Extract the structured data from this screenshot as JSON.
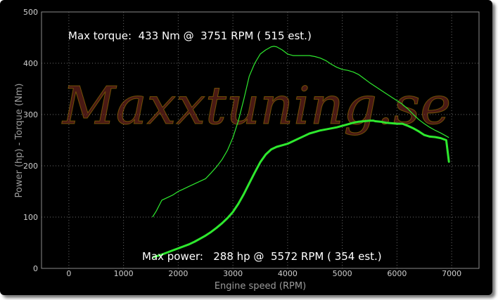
{
  "chart_data": {
    "type": "line",
    "title": "",
    "xlabel": "Engine speed (RPM)",
    "ylabel": "Power (hp) - Torque (Nm)",
    "xlim": [
      -500,
      7500
    ],
    "ylim": [
      0,
      500
    ],
    "x_ticks": [
      0,
      1000,
      2000,
      3000,
      4000,
      5000,
      6000,
      7000
    ],
    "y_ticks": [
      0,
      100,
      200,
      300,
      400,
      500
    ],
    "grid": true,
    "watermark": "Maxxtuning.se",
    "series": [
      {
        "name": "Torque (Nm)",
        "color": "#2ee82e",
        "style": "thin",
        "x": [
          1530,
          1600,
          1700,
          1800,
          1900,
          2000,
          2100,
          2200,
          2300,
          2400,
          2500,
          2600,
          2700,
          2800,
          2900,
          3000,
          3100,
          3200,
          3300,
          3400,
          3500,
          3600,
          3700,
          3751,
          3800,
          3900,
          4000,
          4100,
          4200,
          4300,
          4400,
          4500,
          4600,
          4700,
          4800,
          4900,
          5000,
          5100,
          5200,
          5300,
          5400,
          5500,
          5600,
          5700,
          5800,
          5900,
          6000,
          6100,
          6200,
          6300,
          6400,
          6500,
          6600,
          6700,
          6800,
          6900,
          6950
        ],
        "values": [
          100,
          112,
          133,
          138,
          143,
          150,
          155,
          160,
          165,
          170,
          175,
          186,
          198,
          212,
          230,
          255,
          288,
          330,
          375,
          400,
          418,
          426,
          432,
          433,
          432,
          426,
          418,
          415,
          415,
          415,
          415,
          413,
          410,
          405,
          398,
          392,
          388,
          386,
          383,
          378,
          370,
          362,
          355,
          348,
          341,
          334,
          327,
          320,
          311,
          300,
          290,
          282,
          275,
          269,
          264,
          258,
          255
        ]
      },
      {
        "name": "Power (hp)",
        "color": "#2ee82e",
        "style": "thick",
        "x": [
          1550,
          1700,
          1800,
          1900,
          2000,
          2100,
          2200,
          2300,
          2400,
          2500,
          2600,
          2700,
          2800,
          2900,
          3000,
          3100,
          3200,
          3300,
          3400,
          3500,
          3600,
          3700,
          3800,
          3900,
          4000,
          4100,
          4200,
          4300,
          4400,
          4500,
          4600,
          4700,
          4800,
          4900,
          5000,
          5100,
          5200,
          5300,
          5400,
          5500,
          5572,
          5600,
          5700,
          5800,
          5900,
          6000,
          6100,
          6200,
          6300,
          6400,
          6500,
          6600,
          6700,
          6800,
          6900,
          6950
        ],
        "values": [
          22,
          27,
          31,
          35,
          39,
          43,
          47,
          52,
          58,
          64,
          71,
          79,
          88,
          98,
          110,
          126,
          145,
          166,
          187,
          207,
          222,
          232,
          237,
          240,
          243,
          248,
          253,
          258,
          263,
          266,
          269,
          271,
          273,
          275,
          278,
          281,
          284,
          286,
          287,
          288,
          288,
          287,
          286,
          284,
          283,
          282,
          282,
          278,
          273,
          267,
          260,
          257,
          256,
          254,
          250,
          208
        ]
      }
    ],
    "annotations": {
      "max_torque": "Max torque:  433 Nm @  3751 RPM ( 515 est.)",
      "max_power": "Max power:   288 hp @  5572 RPM ( 354 est.)"
    }
  }
}
